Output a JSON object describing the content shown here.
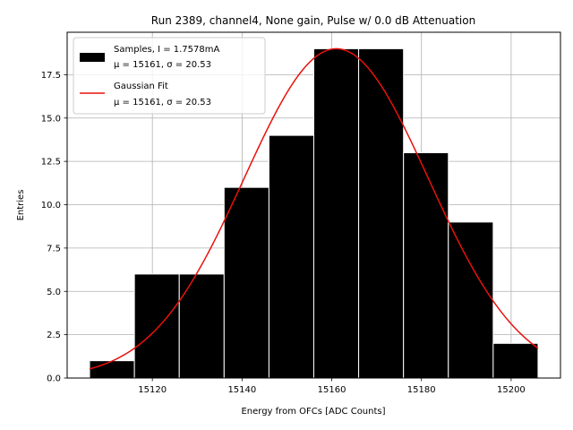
{
  "chart_data": {
    "type": "bar",
    "title": "Run 2389, channel4, None gain, Pulse w/ 0.0 dB Attenuation",
    "xlabel": "Energy from OFCs [ADC Counts]",
    "ylabel": "Entries",
    "xlim": [
      15101,
      15211
    ],
    "ylim": [
      0,
      19.95
    ],
    "grid": true,
    "legend_position": "upper-left",
    "x_ticks": [
      15120,
      15140,
      15160,
      15180,
      15200
    ],
    "x_tick_labels": [
      "15120",
      "15140",
      "15160",
      "15180",
      "15200"
    ],
    "y_ticks": [
      0,
      2.5,
      5,
      7.5,
      10,
      12.5,
      15,
      17.5
    ],
    "y_tick_labels": [
      "0.0",
      "2.5",
      "5.0",
      "7.5",
      "10.0",
      "12.5",
      "15.0",
      "17.5"
    ],
    "histogram": {
      "name": "Samples, I = 1.7578mA",
      "name_line2": "μ = 15161, σ = 20.53",
      "color": "#000000",
      "edge_color": "#ffffff",
      "bin_edges": [
        15106,
        15116,
        15126,
        15136,
        15146,
        15156,
        15166,
        15176,
        15186,
        15196,
        15206
      ],
      "counts": [
        1,
        6,
        6,
        11,
        14,
        19,
        19,
        13,
        9,
        2
      ]
    },
    "fit": {
      "name": "Gaussian Fit",
      "name_line2": "μ = 15161, σ = 20.53",
      "color": "#e8120c",
      "mu": 15161,
      "sigma": 20.53,
      "amplitude": 19.0,
      "x_range": [
        15106,
        15206
      ]
    }
  }
}
